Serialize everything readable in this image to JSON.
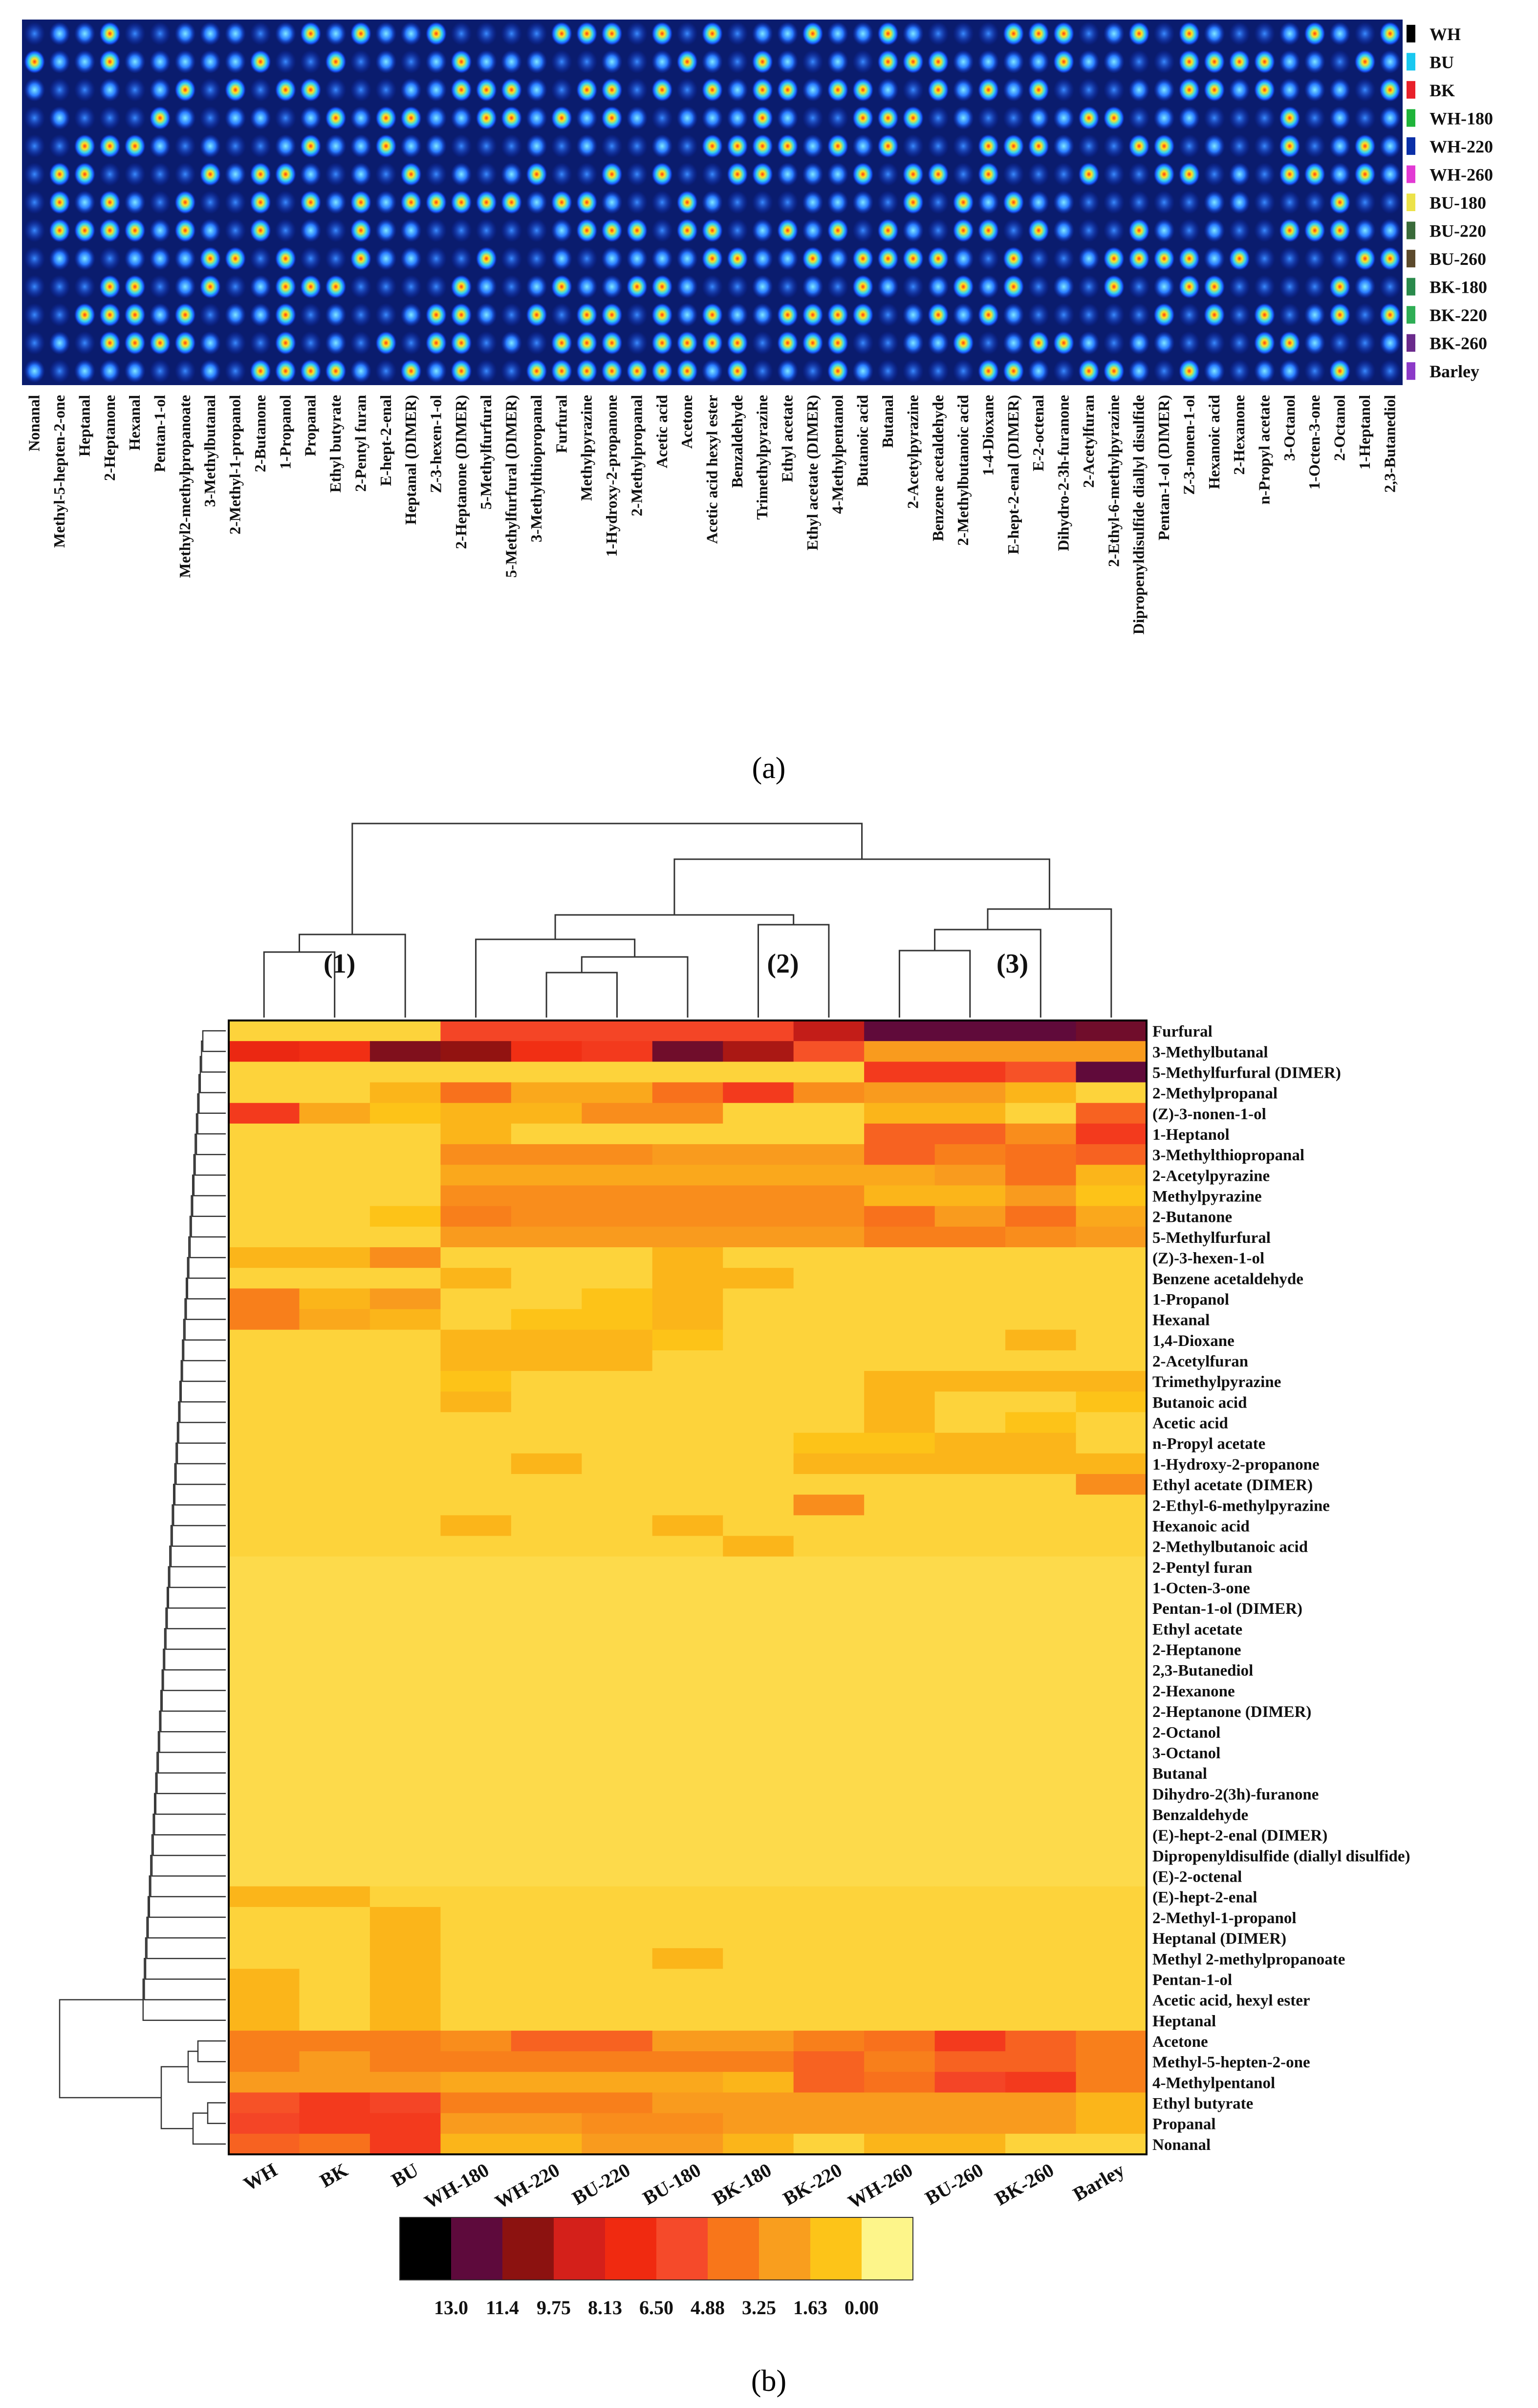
{
  "panels": {
    "a": {
      "label": "(a)"
    },
    "b": {
      "label": "(b)"
    }
  },
  "chart_data": [
    {
      "type": "heatmap",
      "title": "",
      "description_label": "(a)",
      "samples": [
        "WH",
        "BU",
        "BK",
        "WH-180",
        "WH-220",
        "WH-260",
        "BU-180",
        "BU-220",
        "BU-260",
        "BK-180",
        "BK-220",
        "BK-260",
        "Barley"
      ],
      "sample_colors": [
        "#000000",
        "#19c8f0",
        "#e8202a",
        "#1fb43a",
        "#0a2fa8",
        "#e23ad4",
        "#ece24a",
        "#3a6b3a",
        "#5c4a2c",
        "#2a8a4c",
        "#2fae55",
        "#6a2a8c",
        "#8c3ac8"
      ],
      "compounds": [
        "Nonanal",
        "Methyl-5-hepten-2-one",
        "Heptanal",
        "2-Heptanone",
        "Hexanal",
        "Pentan-1-ol",
        "Methyl2-methylpropanoate",
        "3-Methylbutanal",
        "2-Methyl-1-propanol",
        "2-Butanone",
        "1-Propanol",
        "Propanal",
        "Ethyl butyrate",
        "2-Pentyl furan",
        "E-hept-2-enal",
        "Heptanal (DIMER)",
        "Z-3-hexen-1-ol",
        "2-Heptanone (DIMER)",
        "5-Methylfurfural",
        "5-Methylfurfural (DIMER)",
        "3-Methylthiopropanal",
        "Furfural",
        "Methylpyrazine",
        "1-Hydroxy-2-propanone",
        "2-Methylpropanal",
        "Acetic acid",
        "Acetone",
        "Acetic acid hexyl ester",
        "Benzaldehyde",
        "Trimethylpyrazine",
        "Ethyl acetate",
        "Ethyl acetate (DIMER)",
        "4-Methylpentanol",
        "Butanoic acid",
        "Butanal",
        "2-Acetylpyrazine",
        "Benzene acetaldehyde",
        "2-Methylbutanoic acid",
        "1-4-Dioxane",
        "E-hept-2-enal (DIMER)",
        "E-2-octenal",
        "Dihydro-2-3h-furanone",
        "2-Acetylfuran",
        "2-Ethyl-6-methylpyrazine",
        "Dipropenyldisulfide diallyl disulfide",
        "Pentan-1-ol (DIMER)",
        "Z-3-nonen-1-ol",
        "Hexanoic acid",
        "2-Hexanone",
        "n-Propyl acetate",
        "3-Octanol",
        "1-Octen-3-one",
        "2-Octanol",
        "1-Heptanol",
        "2,3-Butanediol"
      ]
    },
    {
      "type": "heatmap",
      "title": "",
      "description_label": "(b)",
      "columns": [
        "WH",
        "BK",
        "BU",
        "WH-180",
        "WH-220",
        "BU-220",
        "BU-180",
        "BK-180",
        "BK-220",
        "WH-260",
        "BU-260",
        "BK-260",
        "Barley"
      ],
      "cluster_labels": [
        "(1)",
        "(2)",
        "(3)"
      ],
      "rows": [
        "Furfural",
        "3-Methylbutanal",
        "5-Methylfurfural (DIMER)",
        "2-Methylpropanal",
        "(Z)-3-nonen-1-ol",
        "1-Heptanol",
        "3-Methylthiopropanal",
        "2-Acetylpyrazine",
        "Methylpyrazine",
        "2-Butanone",
        "5-Methylfurfural",
        "(Z)-3-hexen-1-ol",
        "Benzene acetaldehyde",
        "1-Propanol",
        "Hexanal",
        "1,4-Dioxane",
        "2-Acetylfuran",
        "Trimethylpyrazine",
        "Butanoic acid",
        "Acetic acid",
        "n-Propyl acetate",
        "1-Hydroxy-2-propanone",
        "Ethyl acetate (DIMER)",
        "2-Ethyl-6-methylpyrazine",
        "Hexanoic acid",
        "2-Methylbutanoic acid",
        "2-Pentyl furan",
        "1-Octen-3-one",
        "Pentan-1-ol (DIMER)",
        "Ethyl acetate",
        "2-Heptanone",
        "2,3-Butanediol",
        "2-Hexanone",
        "2-Heptanone (DIMER)",
        "2-Octanol",
        "3-Octanol",
        "Butanal",
        "Dihydro-2(3h)-furanone",
        "Benzaldehyde",
        "(E)-hept-2-enal (DIMER)",
        "Dipropenyldisulfide (diallyl disulfide)",
        "(E)-2-octenal",
        "(E)-hept-2-enal",
        "2-Methyl-1-propanol",
        "Heptanal (DIMER)",
        "Methyl 2-methylpropanoate",
        "Pentan-1-ol",
        "Acetic acid, hexyl ester",
        "Heptanal",
        "Acetone",
        "Methyl-5-hepten-2-one",
        "4-Methylpentanol",
        "Ethyl butyrate",
        "Propanal",
        "Nonanal"
      ],
      "values": [
        [
          1.0,
          1.0,
          1.0,
          6.0,
          6.0,
          6.0,
          6.0,
          6.0,
          9.0,
          11.5,
          11.5,
          11.5,
          11.0
        ],
        [
          7.5,
          7.0,
          10.5,
          10.0,
          7.0,
          6.5,
          11.0,
          9.5,
          5.5,
          3.0,
          3.0,
          3.0,
          3.0
        ],
        [
          1.0,
          1.0,
          1.0,
          1.0,
          1.0,
          1.0,
          1.0,
          1.0,
          1.0,
          6.5,
          6.5,
          5.5,
          11.5
        ],
        [
          1.0,
          1.0,
          2.0,
          4.5,
          2.5,
          2.5,
          4.5,
          6.5,
          3.5,
          3.0,
          3.0,
          2.0,
          1.0
        ],
        [
          6.5,
          2.5,
          1.5,
          2.0,
          2.0,
          3.5,
          3.5,
          1.0,
          1.0,
          2.0,
          2.0,
          1.0,
          5.0
        ],
        [
          1.0,
          1.0,
          1.0,
          2.0,
          1.0,
          1.0,
          1.0,
          1.0,
          1.0,
          5.0,
          5.0,
          3.5,
          6.5
        ],
        [
          1.0,
          1.0,
          1.0,
          3.5,
          3.5,
          3.5,
          3.0,
          3.0,
          3.0,
          5.0,
          4.0,
          4.5,
          5.0
        ],
        [
          1.0,
          1.0,
          1.0,
          2.5,
          2.5,
          2.5,
          2.5,
          2.5,
          2.5,
          2.5,
          3.0,
          4.5,
          2.0
        ],
        [
          1.0,
          1.0,
          1.0,
          3.5,
          3.5,
          3.5,
          3.5,
          3.5,
          3.5,
          2.0,
          2.0,
          3.0,
          1.5
        ],
        [
          1.0,
          1.0,
          1.5,
          4.0,
          3.5,
          3.5,
          3.5,
          3.5,
          3.5,
          4.5,
          3.0,
          4.5,
          2.5
        ],
        [
          1.0,
          1.0,
          1.0,
          3.0,
          3.0,
          3.0,
          3.0,
          3.0,
          3.0,
          4.0,
          4.0,
          3.5,
          3.0
        ],
        [
          2.0,
          2.0,
          3.5,
          1.0,
          1.0,
          1.0,
          2.0,
          1.0,
          1.0,
          1.0,
          1.0,
          1.0,
          1.0
        ],
        [
          1.0,
          1.0,
          1.0,
          2.0,
          1.0,
          1.0,
          2.0,
          2.0,
          1.0,
          1.0,
          1.0,
          1.0,
          1.0
        ],
        [
          4.0,
          2.0,
          3.0,
          1.0,
          1.0,
          1.5,
          2.0,
          1.0,
          1.0,
          1.0,
          1.0,
          1.0,
          1.0
        ],
        [
          4.0,
          2.5,
          2.0,
          1.0,
          1.5,
          1.5,
          2.0,
          1.0,
          1.0,
          1.0,
          1.0,
          1.0,
          1.0
        ],
        [
          1.0,
          1.0,
          1.0,
          2.0,
          2.0,
          2.0,
          1.5,
          1.0,
          1.0,
          1.0,
          1.0,
          2.0,
          1.0
        ],
        [
          1.0,
          1.0,
          1.0,
          2.0,
          2.0,
          2.0,
          1.0,
          1.0,
          1.0,
          1.0,
          1.0,
          1.0,
          1.0
        ],
        [
          1.0,
          1.0,
          1.0,
          1.5,
          1.0,
          1.0,
          1.0,
          1.0,
          1.0,
          2.0,
          2.0,
          2.0,
          2.0
        ],
        [
          1.0,
          1.0,
          1.0,
          2.0,
          1.0,
          1.0,
          1.0,
          1.0,
          1.0,
          2.0,
          1.0,
          1.0,
          1.5
        ],
        [
          1.0,
          1.0,
          1.0,
          1.0,
          1.0,
          1.0,
          1.0,
          1.0,
          1.0,
          2.0,
          1.0,
          1.5,
          1.0
        ],
        [
          1.0,
          1.0,
          1.0,
          1.0,
          1.0,
          1.0,
          1.0,
          1.0,
          1.5,
          1.5,
          2.0,
          2.0,
          1.0
        ],
        [
          1.0,
          1.0,
          1.0,
          1.0,
          2.0,
          1.0,
          1.0,
          1.0,
          2.0,
          2.0,
          2.0,
          2.0,
          2.0
        ],
        [
          1.0,
          1.0,
          1.0,
          1.0,
          1.0,
          1.0,
          1.0,
          1.0,
          1.0,
          1.0,
          1.0,
          1.0,
          3.5
        ],
        [
          1.0,
          1.0,
          1.0,
          1.0,
          1.0,
          1.0,
          1.0,
          1.0,
          3.5,
          1.0,
          1.0,
          1.0,
          1.0
        ],
        [
          1.0,
          1.0,
          1.0,
          2.0,
          1.0,
          1.0,
          2.0,
          1.0,
          1.0,
          1.0,
          1.0,
          1.0,
          1.0
        ],
        [
          1.0,
          1.0,
          1.0,
          1.0,
          1.0,
          1.0,
          1.0,
          2.0,
          1.0,
          1.0,
          1.0,
          1.0,
          1.0
        ],
        [
          0.8,
          0.8,
          0.8,
          0.8,
          0.8,
          0.8,
          0.8,
          0.8,
          0.8,
          0.8,
          0.8,
          0.8,
          0.8
        ],
        [
          0.8,
          0.8,
          0.8,
          0.8,
          0.8,
          0.8,
          0.8,
          0.8,
          0.8,
          0.8,
          0.8,
          0.8,
          0.8
        ],
        [
          0.8,
          0.8,
          0.8,
          0.8,
          0.8,
          0.8,
          0.8,
          0.8,
          0.8,
          0.8,
          0.8,
          0.8,
          0.8
        ],
        [
          0.8,
          0.8,
          0.8,
          0.8,
          0.8,
          0.8,
          0.8,
          0.8,
          0.8,
          0.8,
          0.8,
          0.8,
          0.8
        ],
        [
          0.8,
          0.8,
          0.8,
          0.8,
          0.8,
          0.8,
          0.8,
          0.8,
          0.8,
          0.8,
          0.8,
          0.8,
          0.8
        ],
        [
          0.8,
          0.8,
          0.8,
          0.8,
          0.8,
          0.8,
          0.8,
          0.8,
          0.8,
          0.8,
          0.8,
          0.8,
          0.8
        ],
        [
          0.8,
          0.8,
          0.8,
          0.8,
          0.8,
          0.8,
          0.8,
          0.8,
          0.8,
          0.8,
          0.8,
          0.8,
          0.8
        ],
        [
          0.8,
          0.8,
          0.8,
          0.8,
          0.8,
          0.8,
          0.8,
          0.8,
          0.8,
          0.8,
          0.8,
          0.8,
          0.8
        ],
        [
          0.8,
          0.8,
          0.8,
          0.8,
          0.8,
          0.8,
          0.8,
          0.8,
          0.8,
          0.8,
          0.8,
          0.8,
          0.8
        ],
        [
          0.8,
          0.8,
          0.8,
          0.8,
          0.8,
          0.8,
          0.8,
          0.8,
          0.8,
          0.8,
          0.8,
          0.8,
          0.8
        ],
        [
          0.8,
          0.8,
          0.8,
          0.8,
          0.8,
          0.8,
          0.8,
          0.8,
          0.8,
          0.8,
          0.8,
          0.8,
          0.8
        ],
        [
          0.8,
          0.8,
          0.8,
          0.8,
          0.8,
          0.8,
          0.8,
          0.8,
          0.8,
          0.8,
          0.8,
          0.8,
          0.8
        ],
        [
          0.8,
          0.8,
          0.8,
          0.8,
          0.8,
          0.8,
          0.8,
          0.8,
          0.8,
          0.8,
          0.8,
          0.8,
          0.8
        ],
        [
          0.8,
          0.8,
          0.8,
          0.8,
          0.8,
          0.8,
          0.8,
          0.8,
          0.8,
          0.8,
          0.8,
          0.8,
          0.8
        ],
        [
          0.8,
          0.8,
          0.8,
          0.8,
          0.8,
          0.8,
          0.8,
          0.8,
          0.8,
          0.8,
          0.8,
          0.8,
          0.8
        ],
        [
          0.8,
          0.8,
          0.8,
          0.8,
          0.8,
          0.8,
          0.8,
          0.8,
          0.8,
          0.8,
          0.8,
          0.8,
          0.8
        ],
        [
          2.0,
          2.0,
          1.0,
          1.0,
          1.0,
          1.0,
          1.0,
          1.0,
          1.0,
          1.0,
          1.0,
          1.0,
          1.0
        ],
        [
          1.0,
          1.0,
          2.0,
          1.0,
          1.0,
          1.0,
          1.0,
          1.0,
          1.0,
          1.0,
          1.0,
          1.0,
          1.0
        ],
        [
          1.0,
          1.0,
          2.0,
          1.0,
          1.0,
          1.0,
          1.0,
          1.0,
          1.0,
          1.0,
          1.0,
          1.0,
          1.0
        ],
        [
          1.0,
          1.0,
          2.0,
          1.0,
          1.0,
          1.0,
          2.0,
          1.0,
          1.0,
          1.0,
          1.0,
          1.0,
          1.0
        ],
        [
          2.0,
          1.0,
          2.0,
          1.0,
          1.0,
          1.0,
          1.0,
          1.0,
          1.0,
          1.0,
          1.0,
          1.0,
          1.0
        ],
        [
          2.0,
          1.0,
          2.0,
          1.0,
          1.0,
          1.0,
          1.0,
          1.0,
          1.0,
          1.0,
          1.0,
          1.0,
          1.0
        ],
        [
          2.0,
          1.0,
          2.0,
          1.0,
          1.0,
          1.0,
          1.0,
          1.0,
          1.0,
          1.0,
          1.0,
          1.0,
          1.0
        ],
        [
          4.0,
          4.0,
          4.0,
          3.5,
          5.0,
          5.0,
          3.0,
          3.0,
          4.0,
          4.5,
          6.5,
          5.0,
          4.0
        ],
        [
          4.0,
          3.0,
          4.0,
          4.0,
          4.0,
          4.0,
          4.0,
          4.0,
          5.0,
          4.0,
          5.0,
          5.0,
          4.0
        ],
        [
          3.0,
          3.0,
          3.0,
          2.5,
          2.5,
          2.5,
          2.5,
          2.0,
          5.0,
          4.5,
          6.0,
          6.5,
          4.0
        ],
        [
          5.5,
          6.5,
          6.0,
          4.0,
          4.0,
          4.0,
          3.0,
          3.0,
          3.0,
          3.0,
          3.0,
          3.0,
          2.0
        ],
        [
          6.0,
          6.5,
          6.5,
          3.0,
          3.0,
          3.5,
          3.5,
          3.0,
          3.0,
          3.0,
          3.0,
          3.0,
          2.0
        ],
        [
          5.0,
          4.5,
          6.5,
          2.0,
          2.0,
          3.0,
          3.0,
          2.0,
          1.0,
          2.0,
          2.0,
          1.0,
          1.0
        ]
      ],
      "colorbar": {
        "ticks": [
          "13.0",
          "11.4",
          "9.75",
          "8.13",
          "6.50",
          "4.88",
          "3.25",
          "1.63",
          "0.00"
        ],
        "range": [
          0,
          13
        ],
        "colors": [
          "#000000",
          "#5e0a3c",
          "#8c1210",
          "#d4201a",
          "#f02a10",
          "#f54a2a",
          "#f8761a",
          "#f99e1e",
          "#fdc418",
          "#fdf58a"
        ]
      }
    }
  ]
}
